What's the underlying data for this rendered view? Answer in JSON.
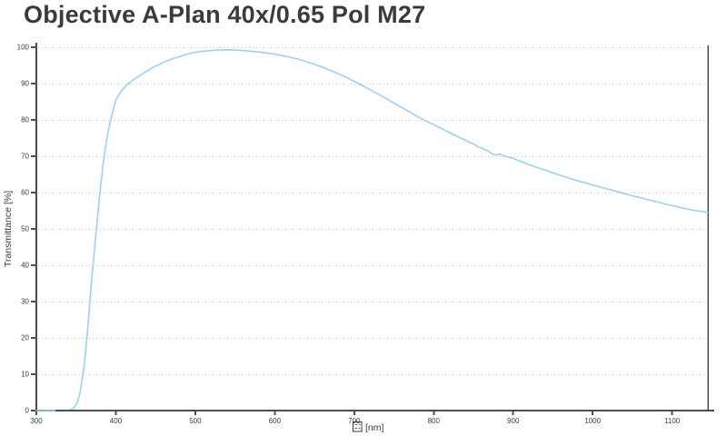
{
  "chart_data": {
    "type": "line",
    "title": "Objective A-Plan 40x/0.65 Pol M27",
    "ylabel": "Transmittance [%]",
    "xlabel_glyph": "missing-glyph-box",
    "xlabel_unit": "[nm]",
    "xlim": [
      300,
      1145
    ],
    "ylim": [
      0,
      100
    ],
    "x_ticks": [
      300,
      400,
      500,
      600,
      700,
      800,
      900,
      1000,
      1100
    ],
    "y_ticks": [
      0,
      10,
      20,
      30,
      40,
      50,
      60,
      70,
      80,
      90,
      100
    ],
    "grid": "horizontal-dotted",
    "legend": "none",
    "colors": {
      "line": "#9bd1ef",
      "axis": "#4d4d4d",
      "grid": "#bfbfbf",
      "tick_label": "#3a3a3a",
      "title": "#3b3b3b",
      "zero_segment": "#2f586d"
    },
    "zero_overlap_segment": {
      "x_start": 324,
      "x_end": 350,
      "y": 0
    },
    "series": [
      {
        "points": [
          [
            300,
            0
          ],
          [
            310,
            0
          ],
          [
            320,
            0
          ],
          [
            326,
            0
          ],
          [
            332,
            0
          ],
          [
            338,
            0
          ],
          [
            344,
            0.2
          ],
          [
            348,
            1
          ],
          [
            352,
            2.5
          ],
          [
            355,
            5
          ],
          [
            358,
            9
          ],
          [
            361,
            14
          ],
          [
            364,
            21
          ],
          [
            367,
            29
          ],
          [
            370,
            37
          ],
          [
            373,
            44
          ],
          [
            376,
            51
          ],
          [
            379,
            58
          ],
          [
            382,
            64
          ],
          [
            385,
            69.5
          ],
          [
            388,
            74
          ],
          [
            391,
            77.5
          ],
          [
            394,
            80.5
          ],
          [
            397,
            83
          ],
          [
            400,
            85.5
          ],
          [
            404,
            87
          ],
          [
            408,
            88.3
          ],
          [
            412,
            89.2
          ],
          [
            416,
            90
          ],
          [
            420,
            90.7
          ],
          [
            425,
            91.5
          ],
          [
            430,
            92.2
          ],
          [
            435,
            92.9
          ],
          [
            440,
            93.6
          ],
          [
            445,
            94.2
          ],
          [
            450,
            94.8
          ],
          [
            455,
            95.3
          ],
          [
            460,
            95.8
          ],
          [
            465,
            96.3
          ],
          [
            470,
            96.7
          ],
          [
            475,
            97.1
          ],
          [
            480,
            97.4
          ],
          [
            485,
            97.8
          ],
          [
            490,
            98.1
          ],
          [
            495,
            98.4
          ],
          [
            500,
            98.6
          ],
          [
            505,
            98.8
          ],
          [
            510,
            98.9
          ],
          [
            515,
            99.0
          ],
          [
            520,
            99.1
          ],
          [
            525,
            99.2
          ],
          [
            530,
            99.25
          ],
          [
            540,
            99.3
          ],
          [
            550,
            99.25
          ],
          [
            560,
            99.1
          ],
          [
            570,
            98.9
          ],
          [
            580,
            98.7
          ],
          [
            590,
            98.4
          ],
          [
            600,
            98.1
          ],
          [
            610,
            97.7
          ],
          [
            620,
            97.2
          ],
          [
            630,
            96.7
          ],
          [
            640,
            96.0
          ],
          [
            650,
            95.3
          ],
          [
            660,
            94.5
          ],
          [
            670,
            93.6
          ],
          [
            680,
            92.7
          ],
          [
            690,
            91.7
          ],
          [
            700,
            90.6
          ],
          [
            710,
            89.5
          ],
          [
            720,
            88.3
          ],
          [
            730,
            87.1
          ],
          [
            740,
            85.9
          ],
          [
            750,
            84.6
          ],
          [
            760,
            83.4
          ],
          [
            770,
            82.1
          ],
          [
            780,
            80.9
          ],
          [
            790,
            79.7
          ],
          [
            800,
            78.7
          ],
          [
            810,
            77.6
          ],
          [
            820,
            76.5
          ],
          [
            830,
            75.4
          ],
          [
            840,
            74.4
          ],
          [
            847,
            73.6
          ],
          [
            852,
            73.2
          ],
          [
            856,
            72.5
          ],
          [
            860,
            72.3
          ],
          [
            864,
            71.8
          ],
          [
            868,
            71.5
          ],
          [
            872,
            70.9
          ],
          [
            876,
            70.4
          ],
          [
            880,
            70.4
          ],
          [
            884,
            70.6
          ],
          [
            888,
            70.1
          ],
          [
            892,
            69.9
          ],
          [
            896,
            69.6
          ],
          [
            900,
            69.4
          ],
          [
            910,
            68.5
          ],
          [
            920,
            67.7
          ],
          [
            930,
            66.9
          ],
          [
            940,
            66.2
          ],
          [
            950,
            65.4
          ],
          [
            960,
            64.7
          ],
          [
            970,
            64.0
          ],
          [
            980,
            63.3
          ],
          [
            990,
            62.7
          ],
          [
            1000,
            62.1
          ],
          [
            1010,
            61.5
          ],
          [
            1020,
            60.9
          ],
          [
            1030,
            60.3
          ],
          [
            1040,
            59.7
          ],
          [
            1050,
            59.1
          ],
          [
            1060,
            58.6
          ],
          [
            1070,
            58.0
          ],
          [
            1080,
            57.5
          ],
          [
            1090,
            56.9
          ],
          [
            1100,
            56.4
          ],
          [
            1110,
            55.9
          ],
          [
            1120,
            55.4
          ],
          [
            1130,
            55.0
          ],
          [
            1140,
            54.7
          ],
          [
            1145,
            54.5
          ]
        ]
      }
    ]
  }
}
